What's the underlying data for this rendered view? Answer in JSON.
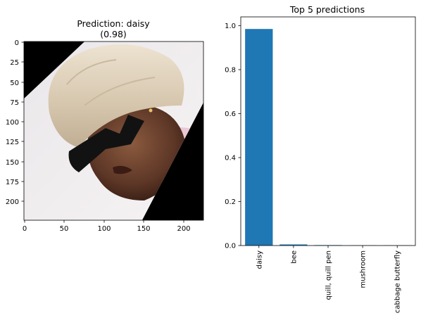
{
  "image_panel": {
    "title_line1": "Prediction: daisy",
    "title_line2": "(0.98)",
    "xticks": [
      "0",
      "50",
      "100",
      "150",
      "200"
    ],
    "yticks": [
      "0",
      "25",
      "50",
      "75",
      "100",
      "125",
      "150",
      "175",
      "200"
    ],
    "image_description_icon": "rotated-portrait-image"
  },
  "chart_data": {
    "type": "bar",
    "title": "Top 5 predictions",
    "categories": [
      "daisy",
      "bee",
      "quill, quill pen",
      "mushroom",
      "cabbage butterfly"
    ],
    "values": [
      0.985,
      0.005,
      0.002,
      0.001,
      0.001
    ],
    "ylim": [
      0,
      1.04
    ],
    "yticks": [
      "0.0",
      "0.2",
      "0.4",
      "0.6",
      "0.8",
      "1.0"
    ],
    "xlabel": "",
    "ylabel": "",
    "grid": false,
    "bar_color": "#1f77b4"
  },
  "colors": {
    "bar": "#1f77b4",
    "axis": "#000000",
    "background": "#ffffff"
  }
}
